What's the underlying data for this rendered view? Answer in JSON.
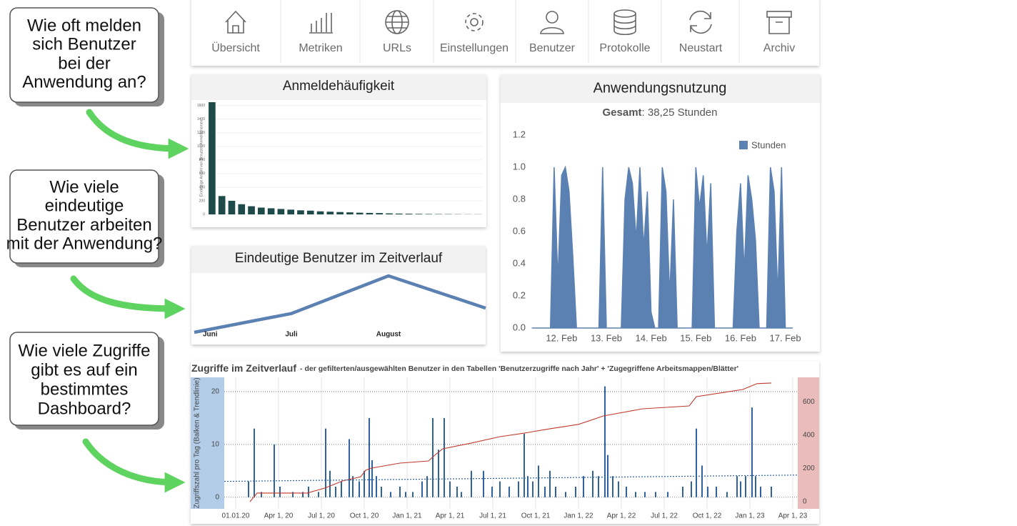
{
  "nav": {
    "items": [
      "Übersicht",
      "Metriken",
      "URLs",
      "Einstellungen",
      "Benutzer",
      "Protokolle",
      "Neustart",
      "Archiv"
    ]
  },
  "callouts": [
    {
      "lines": [
        "Wie oft melden",
        "sich Benutzer",
        "bei der",
        "Anwendung an?"
      ]
    },
    {
      "lines": [
        "Wie viele",
        "eindeutige",
        "Benutzer arbeiten",
        "mit der Anwendung?"
      ]
    },
    {
      "lines": [
        "Wie viele Zugriffe",
        "gibt es auf ein",
        "bestimmtes",
        "Dashboard?"
      ]
    }
  ],
  "chart_data": [
    {
      "type": "bar",
      "title": "Anmeldehäufigkeit",
      "y_label": "Eindeutige Anzahl von Benutzer-Anmeldenamen",
      "color": "#1f4a4a",
      "categories": [
        null,
        null,
        null,
        null,
        null,
        null,
        null,
        null,
        null,
        null,
        null,
        null,
        null,
        null,
        null,
        null,
        null,
        null,
        null,
        null,
        null,
        null,
        null,
        null,
        null,
        null,
        null,
        null
      ],
      "values": [
        1650,
        270,
        200,
        150,
        120,
        100,
        90,
        80,
        70,
        60,
        55,
        45,
        40,
        35,
        30,
        25,
        22,
        20,
        15,
        12,
        10,
        8,
        6,
        5,
        4,
        3,
        2,
        2
      ],
      "ylim": [
        0,
        1650
      ],
      "yticks": [
        0,
        200,
        400,
        600,
        800,
        1000,
        1200,
        1400,
        1600
      ]
    },
    {
      "type": "line",
      "title": "Eindeutige Benutzer im Zeitverlauf",
      "color": "#5b80b2",
      "categories": [
        "Juni",
        "Juli",
        "August",
        null
      ],
      "values": [
        100,
        135,
        205,
        145
      ]
    },
    {
      "type": "area",
      "title": "Anwendungsnutzung",
      "subtitle_label": "Gesamt",
      "subtitle_text": ": 38,25 Stunden",
      "x": [
        -16,
        -14,
        -12,
        -10,
        -8,
        -6,
        -4,
        -2,
        0,
        2,
        4,
        6,
        8,
        10,
        12,
        14,
        16,
        18,
        20,
        22,
        24,
        26,
        28,
        30,
        32,
        34,
        36,
        38,
        40,
        42,
        44,
        46,
        48,
        50,
        52,
        54,
        56,
        58,
        60,
        62,
        64,
        66,
        68,
        70,
        72,
        74,
        76,
        78,
        80,
        82,
        84,
        86,
        88,
        90,
        92,
        94,
        96,
        98,
        100,
        102,
        104,
        106,
        108,
        110,
        112,
        114,
        116,
        118,
        120,
        122,
        124
      ],
      "series": [
        {
          "name": "Stunden",
          "color": "#5b80b2",
          "values": [
            0,
            0,
            0,
            0,
            0,
            0,
            1.0,
            0.3,
            0.95,
            1.0,
            0.85,
            0.45,
            0,
            0,
            0,
            0,
            0,
            0,
            0,
            1.0,
            0,
            0,
            0,
            0,
            0,
            0.8,
            1.0,
            0.9,
            0.55,
            1.0,
            0.5,
            0.85,
            0.1,
            0,
            0,
            1.0,
            0.85,
            0.2,
            0.8,
            0,
            0,
            0,
            0,
            0,
            1.0,
            0.75,
            0.95,
            0.45,
            0.9,
            0,
            0,
            0,
            0,
            0,
            0,
            0.6,
            0.9,
            0.35,
            0.95,
            0.8,
            0.55,
            0,
            0,
            0,
            1.0,
            0.85,
            0.2,
            1.0,
            0,
            0,
            0
          ]
        }
      ],
      "xlim": [
        -17,
        124
      ],
      "xticks": [
        {
          "value": 0,
          "label": "12. Feb"
        },
        {
          "value": 24,
          "label": "13. Feb"
        },
        {
          "value": 48,
          "label": "14. Feb"
        },
        {
          "value": 72,
          "label": "15. Feb"
        },
        {
          "value": 96,
          "label": "16. Feb"
        },
        {
          "value": 120,
          "label": "17. Feb"
        }
      ],
      "ylim": [
        0,
        1.2
      ],
      "yticks": [
        {
          "value": 0,
          "label": "0.0"
        },
        0.2,
        0.4,
        0.6,
        0.8,
        {
          "value": 1,
          "label": "1.0"
        },
        1.2
      ],
      "legend": "top-right"
    },
    {
      "type": "bar",
      "title": "Zugriffe im Zeitverlauf",
      "subtitle": "- der gefilterten/ausgewählten Benutzer in den Tabellen 'Benutzerzugriffe nach Jahr' + 'Zugegriffene Arbeitsmappen/Blätter'",
      "y_label": "Zugriffszahl pro Tag (Balken & Trendlinie)",
      "grid": true,
      "series": [
        {
          "color": "#2f63a0",
          "x": [
            0.9,
            1.3,
            1.8,
            2.7,
            3.1,
            4.0,
            4.7,
            5.1,
            5.8,
            6.3,
            6.6,
            7.0,
            7.4,
            7.95,
            8.2,
            8.65,
            9.0,
            9.35,
            9.55,
            9.85,
            10.2,
            10.85,
            11.5,
            11.9,
            12.4,
            13.05,
            13.4,
            13.8,
            14.2,
            14.6,
            15.0,
            15.5,
            15.8,
            16.5,
            17.35,
            17.95,
            18.5,
            19.15,
            19.8,
            20.2,
            20.45,
            20.8,
            21.2,
            21.65,
            22.0,
            22.4,
            23.1,
            23.8,
            24.35,
            25.0,
            25.4,
            25.85,
            26.05,
            26.4,
            26.8,
            27.35,
            28.0,
            28.65,
            29.4,
            30.25,
            31.3,
            31.9,
            32.25,
            32.65,
            33.05,
            33.65,
            34.4,
            35.1,
            35.35,
            35.7,
            36.15,
            36.4,
            36.75,
            37.5
          ],
          "values": [
            3,
            13,
            1,
            10,
            2,
            1,
            1,
            2,
            1,
            13,
            5,
            2,
            3,
            11,
            4,
            3,
            5,
            15,
            7,
            4,
            2,
            1,
            2,
            1,
            1,
            3,
            4,
            15,
            9,
            15,
            3,
            2,
            1,
            5,
            5,
            2,
            3,
            2,
            3,
            12,
            4,
            3,
            6,
            2,
            5,
            2,
            1,
            2,
            4,
            5,
            4,
            21,
            8,
            4,
            3,
            2,
            1,
            1,
            1,
            1,
            2,
            3,
            13,
            6,
            2,
            2,
            1,
            4,
            3,
            4,
            17,
            4,
            2,
            2
          ]
        },
        {
          "type": "line",
          "axis": "y2",
          "color": "#c0392b",
          "x": [
            1.0,
            1.5,
            5.0,
            6.25,
            7.5,
            8.75,
            9.1,
            9.5,
            11.5,
            13.5,
            14.0,
            14.5,
            16.5,
            18.5,
            20.25,
            20.5,
            22.0,
            24.0,
            25.75,
            28.5,
            31.75,
            32.25,
            35.5,
            36.5,
            37.5
          ],
          "values": [
            0,
            52,
            52,
            82,
            125,
            150,
            189,
            202,
            232,
            245,
            284,
            318,
            353,
            391,
            413,
            417,
            439,
            465,
            516,
            559,
            576,
            632,
            675,
            710,
            714
          ]
        },
        {
          "type": "line",
          "dash": "dotted",
          "color": "#2f63a0",
          "x": [
            -0.8,
            39.35
          ],
          "values": [
            3.0,
            4.2
          ]
        }
      ],
      "xlim": [
        -0.8,
        39.35
      ],
      "xticks": [
        {
          "value": 0,
          "label": "01.01.20"
        },
        {
          "value": 3,
          "label": "Apr 1, 20"
        },
        {
          "value": 6,
          "label": "Jul 1, 20"
        },
        {
          "value": 9,
          "label": "Oct 1, 20"
        },
        {
          "value": 12,
          "label": "Jan 1, 21"
        },
        {
          "value": 15,
          "label": "Apr 1, 21"
        },
        {
          "value": 18,
          "label": "Jul 1, 21"
        },
        {
          "value": 21,
          "label": "Oct 1, 21"
        },
        {
          "value": 24,
          "label": "Jan 1, 22"
        },
        {
          "value": 27,
          "label": "Apr 1, 22"
        },
        {
          "value": 30,
          "label": "Jul 1, 22"
        },
        {
          "value": 33,
          "label": "Oct 1, 22"
        },
        {
          "value": 36,
          "label": "Jan 1, 23"
        },
        {
          "value": 39,
          "label": "Apr 1, 23"
        }
      ],
      "ylim": [
        -2.2,
        22.7
      ],
      "yticks": [
        0,
        10,
        20
      ],
      "y2lim": [
        -43,
        748
      ],
      "y2ticks": [
        0,
        200,
        400,
        600
      ]
    }
  ]
}
